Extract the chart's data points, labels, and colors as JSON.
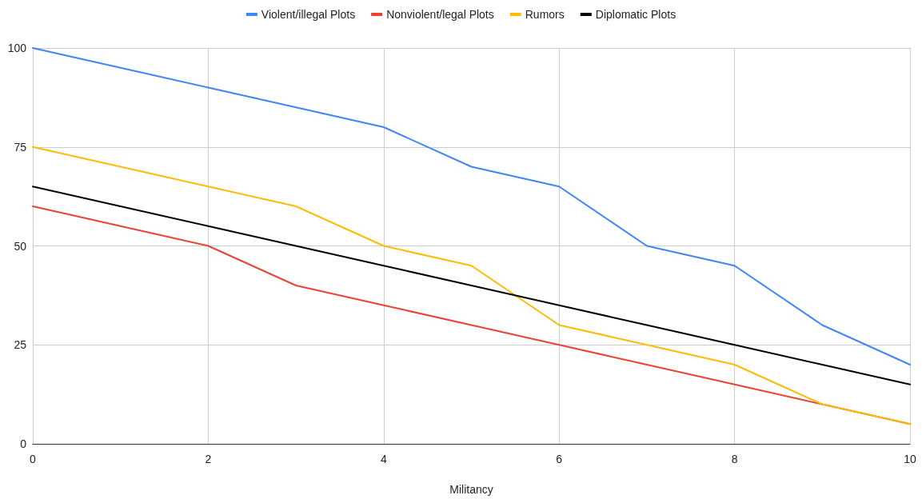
{
  "chart_data": {
    "type": "line",
    "xlabel": "Militancy",
    "x": [
      0,
      1,
      2,
      3,
      4,
      5,
      6,
      7,
      8,
      9,
      10
    ],
    "series": [
      {
        "name": "Violent/illegal Plots",
        "color": "#4285f4",
        "values": [
          100,
          95,
          90,
          85,
          80,
          70,
          65,
          50,
          45,
          30,
          20
        ]
      },
      {
        "name": "Nonviolent/legal Plots",
        "color": "#ea4335",
        "values": [
          60,
          55,
          50,
          40,
          35,
          30,
          25,
          20,
          15,
          10,
          5
        ]
      },
      {
        "name": "Rumors",
        "color": "#fbbc04",
        "values": [
          75,
          70,
          65,
          60,
          50,
          45,
          30,
          25,
          20,
          10,
          5
        ]
      },
      {
        "name": "Diplomatic Plots",
        "color": "#000000",
        "values": [
          65,
          60,
          55,
          50,
          45,
          40,
          35,
          30,
          25,
          20,
          15
        ]
      }
    ],
    "xlim": [
      0,
      10
    ],
    "xticks": [
      0,
      2,
      4,
      6,
      8,
      10
    ],
    "ylim": [
      0,
      100
    ],
    "yticks": [
      0,
      25,
      50,
      75,
      100
    ],
    "grid": true,
    "legend": "top",
    "marker": "none",
    "line_style": "solid"
  }
}
